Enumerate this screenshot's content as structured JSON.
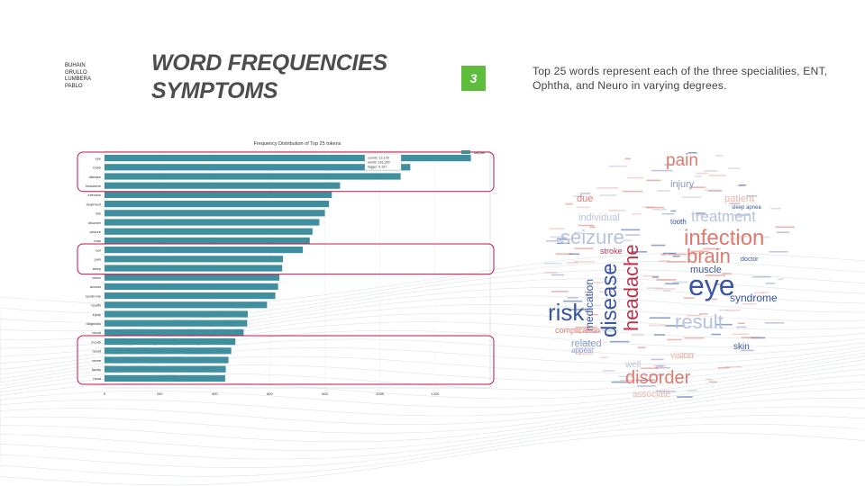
{
  "authors": [
    "BUHAIN",
    "GRULLO",
    "LUMBERA",
    "PABLO"
  ],
  "title": {
    "line1": "WORD FREQUENCIES",
    "line2": "SYMPTOMS"
  },
  "slide_number": "3",
  "description": "Top 25 words represent each of the three specialities, ENT, Ophtha, and Neuro in varying degrees.",
  "colors": {
    "bar": "#3f8f9e",
    "highlight": "#c0144a",
    "badge": "#5fbd3d",
    "title": "#4d4d4d"
  },
  "chart_data": {
    "type": "bar",
    "orientation": "horizontal",
    "title": "Frequency Distribution of Top 25 tokens",
    "legend": {
      "label": "corpus",
      "placement": "top-right"
    },
    "categories": [
      "eye",
      "brain",
      "disease",
      "headache",
      "infection",
      "treatment",
      "risk",
      "disorder",
      "seizure",
      "bras",
      "ear",
      "pain",
      "sleep",
      "vision",
      "access",
      "syndrome",
      "health",
      "injury",
      "diagnosis",
      "blood",
      "mouth",
      "result",
      "nerve",
      "family",
      "head"
    ],
    "values": [
      1330,
      1110,
      1075,
      855,
      825,
      815,
      800,
      780,
      755,
      745,
      720,
      648,
      645,
      635,
      630,
      620,
      590,
      520,
      518,
      505,
      475,
      460,
      450,
      440,
      438
    ],
    "xlim": [
      0,
      1400
    ],
    "xticks": [
      "0",
      "200",
      "400",
      "600",
      "800",
      "1000",
      "1200"
    ],
    "tooltip": [
      "counts: 12,176",
      "words: 161,200",
      "tagger: 9,157"
    ],
    "highlight_groups": [
      [
        0,
        3
      ],
      [
        10,
        12
      ],
      [
        20,
        24
      ]
    ]
  },
  "wordcloud": {
    "words": [
      {
        "t": "pain",
        "s": 19,
        "c": "#e07a6d"
      },
      {
        "t": "infection",
        "s": 24,
        "c": "#e07a6d"
      },
      {
        "t": "brain",
        "s": 22,
        "c": "#e07a6d"
      },
      {
        "t": "eye",
        "s": 32,
        "c": "#3a55a4"
      },
      {
        "t": "seizure",
        "s": 22,
        "c": "#b8c2df"
      },
      {
        "t": "treatment",
        "s": 17,
        "c": "#b8c2df"
      },
      {
        "t": "result",
        "s": 22,
        "c": "#b8c2df"
      },
      {
        "t": "risk",
        "s": 26,
        "c": "#3a55a4"
      },
      {
        "t": "disease",
        "s": 24,
        "c": "#3a55a4"
      },
      {
        "t": "headache",
        "s": 22,
        "c": "#c0304a"
      },
      {
        "t": "disorder",
        "s": 20,
        "c": "#e07a6d"
      },
      {
        "t": "syndrome",
        "s": 12,
        "c": "#3a55a4"
      },
      {
        "t": "medication",
        "s": 12,
        "c": "#3a55a4"
      },
      {
        "t": "muscle",
        "s": 11,
        "c": "#3a55a4"
      },
      {
        "t": "injury",
        "s": 11,
        "c": "#8d98c6"
      },
      {
        "t": "individual",
        "s": 11,
        "c": "#b8c2df"
      },
      {
        "t": "patient",
        "s": 11,
        "c": "#e9b3ab"
      },
      {
        "t": "stroke",
        "s": 9,
        "c": "#c0304a"
      },
      {
        "t": "related",
        "s": 11,
        "c": "#8d98c6"
      },
      {
        "t": "complication",
        "s": 9,
        "c": "#e07a6d"
      },
      {
        "t": "skin",
        "s": 10,
        "c": "#3a55a4"
      },
      {
        "t": "vision",
        "s": 10,
        "c": "#e9b3ab"
      },
      {
        "t": "associate",
        "s": 10,
        "c": "#e9b3ab"
      },
      {
        "t": "due",
        "s": 11,
        "c": "#e07a6d"
      },
      {
        "t": "well",
        "s": 10,
        "c": "#b8c2df"
      },
      {
        "t": "tooth",
        "s": 8,
        "c": "#3a55a4"
      },
      {
        "t": "appear",
        "s": 8,
        "c": "#8d98c6"
      },
      {
        "t": "doctor",
        "s": 7,
        "c": "#3a55a4"
      },
      {
        "t": "sleep apnea",
        "s": 6,
        "c": "#3a55a4"
      }
    ]
  }
}
